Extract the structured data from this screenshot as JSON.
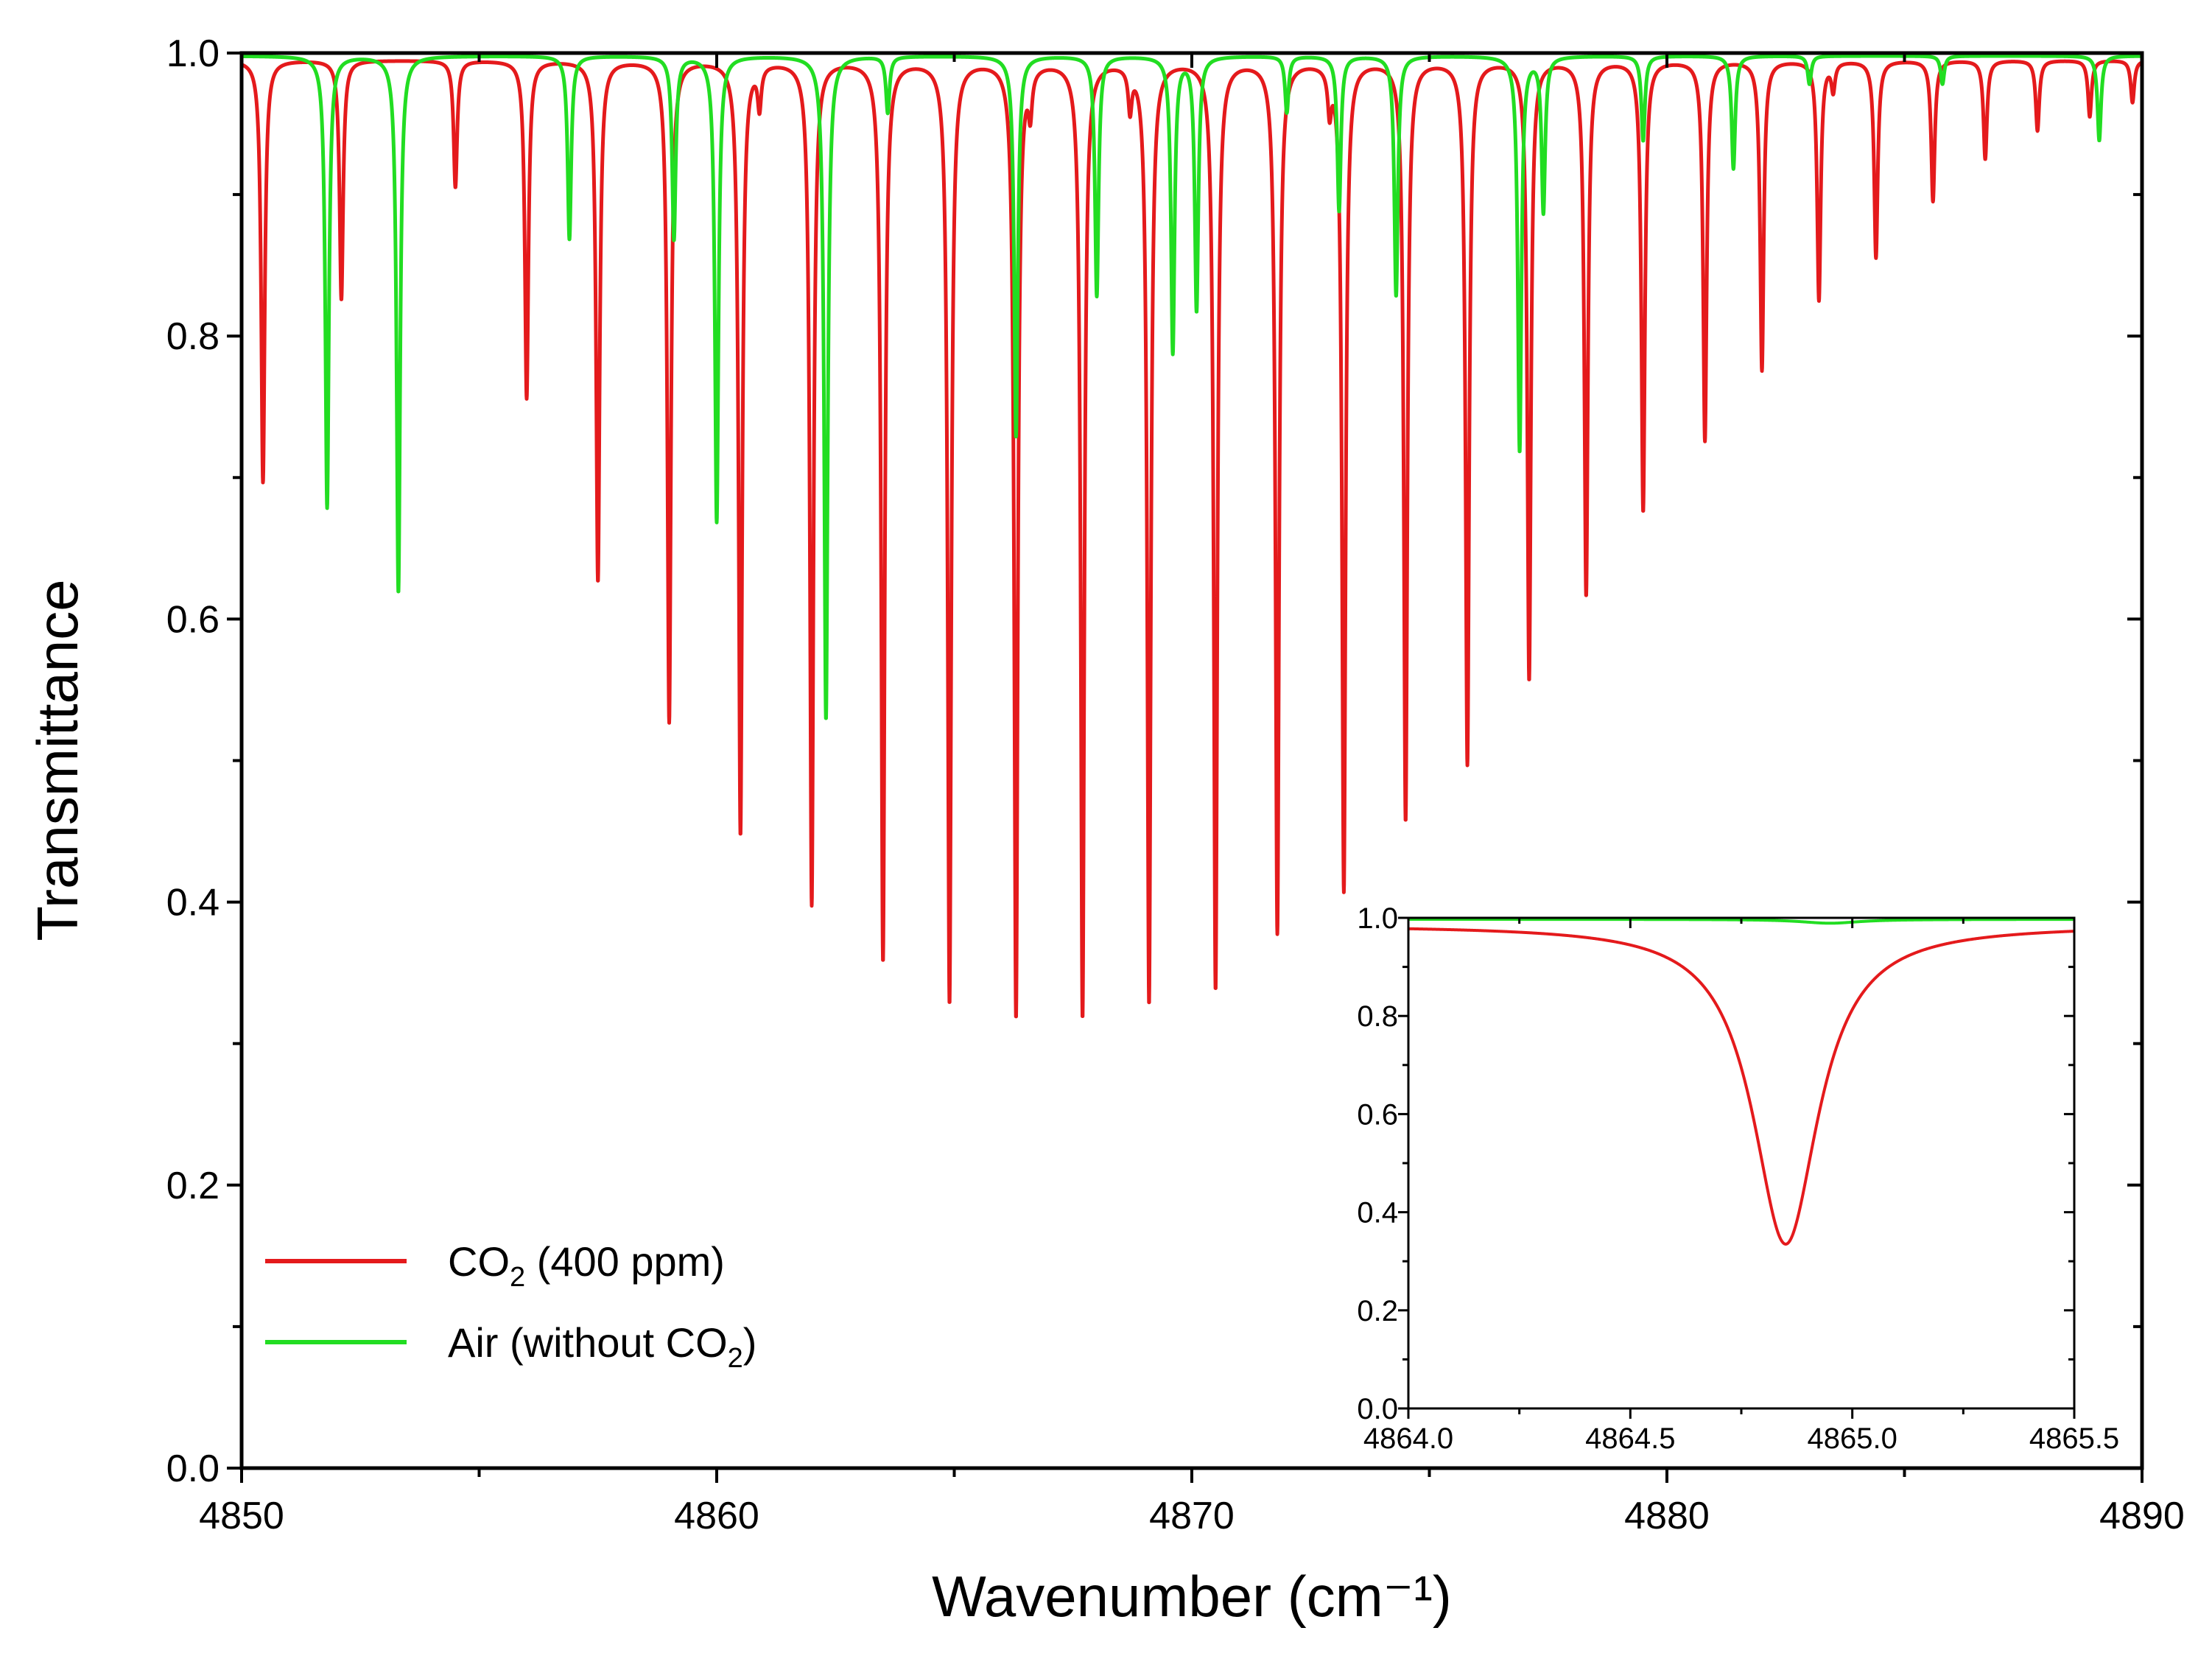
{
  "chart_data": [
    {
      "type": "line",
      "title": "",
      "xlabel": "Wavenumber (cm⁻¹)",
      "ylabel": "Transmittance",
      "xlim": [
        4850,
        4890
      ],
      "ylim": [
        0,
        1.0
      ],
      "xticks": [
        4850,
        4860,
        4870,
        4880,
        4890
      ],
      "xtick_labels": [
        "4850",
        "4860",
        "4870",
        "4880",
        "4890"
      ],
      "yticks": [
        0.0,
        0.2,
        0.4,
        0.6,
        0.8,
        1.0
      ],
      "ytick_labels": [
        "0.0",
        "0.2",
        "0.4",
        "0.6",
        "0.8",
        "1.0"
      ],
      "legend_position": "bottom-left",
      "series": [
        {
          "name": "CO2 (400 ppm)",
          "legend_main": "CO",
          "legend_sub": "2",
          "legend_suffix": " (400 ppm)",
          "color": "#e41a1c",
          "lines": [
            {
              "x": 4850.45,
              "depth": 0.3
            },
            {
              "x": 4852.1,
              "depth": 0.17
            },
            {
              "x": 4854.5,
              "depth": 0.09
            },
            {
              "x": 4856.0,
              "depth": 0.24
            },
            {
              "x": 4857.5,
              "depth": 0.37
            },
            {
              "x": 4859.0,
              "depth": 0.47
            },
            {
              "x": 4860.5,
              "depth": 0.55
            },
            {
              "x": 4862.0,
              "depth": 0.6
            },
            {
              "x": 4863.5,
              "depth": 0.64
            },
            {
              "x": 4864.9,
              "depth": 0.67
            },
            {
              "x": 4866.3,
              "depth": 0.68
            },
            {
              "x": 4867.7,
              "depth": 0.68
            },
            {
              "x": 4869.1,
              "depth": 0.67
            },
            {
              "x": 4870.5,
              "depth": 0.66
            },
            {
              "x": 4871.8,
              "depth": 0.62
            },
            {
              "x": 4873.2,
              "depth": 0.59
            },
            {
              "x": 4874.5,
              "depth": 0.54
            },
            {
              "x": 4875.8,
              "depth": 0.5
            },
            {
              "x": 4877.1,
              "depth": 0.44
            },
            {
              "x": 4878.3,
              "depth": 0.38
            },
            {
              "x": 4879.5,
              "depth": 0.32
            },
            {
              "x": 4880.8,
              "depth": 0.27
            },
            {
              "x": 4882.0,
              "depth": 0.22
            },
            {
              "x": 4883.2,
              "depth": 0.17
            },
            {
              "x": 4884.4,
              "depth": 0.14
            },
            {
              "x": 4885.6,
              "depth": 0.1
            },
            {
              "x": 4886.7,
              "depth": 0.07
            },
            {
              "x": 4887.8,
              "depth": 0.05
            },
            {
              "x": 4888.9,
              "depth": 0.04
            },
            {
              "x": 4889.8,
              "depth": 0.03
            },
            {
              "x": 4860.9,
              "depth": 0.03
            },
            {
              "x": 4866.6,
              "depth": 0.03
            },
            {
              "x": 4868.7,
              "depth": 0.03
            },
            {
              "x": 4872.9,
              "depth": 0.03
            },
            {
              "x": 4883.5,
              "depth": 0.02
            }
          ]
        },
        {
          "name": "Air (without CO2)",
          "legend_main": "Air (without CO",
          "legend_sub": "2",
          "legend_suffix": ")",
          "color": "#22dd22",
          "lines": [
            {
              "x": 4851.8,
              "depth": 0.32
            },
            {
              "x": 4853.3,
              "depth": 0.38
            },
            {
              "x": 4856.9,
              "depth": 0.13
            },
            {
              "x": 4859.1,
              "depth": 0.13
            },
            {
              "x": 4860.0,
              "depth": 0.33
            },
            {
              "x": 4862.3,
              "depth": 0.47
            },
            {
              "x": 4863.6,
              "depth": 0.04
            },
            {
              "x": 4866.3,
              "depth": 0.27
            },
            {
              "x": 4868.0,
              "depth": 0.17
            },
            {
              "x": 4869.6,
              "depth": 0.21
            },
            {
              "x": 4870.1,
              "depth": 0.18
            },
            {
              "x": 4872.0,
              "depth": 0.04
            },
            {
              "x": 4873.1,
              "depth": 0.11
            },
            {
              "x": 4874.3,
              "depth": 0.17
            },
            {
              "x": 4876.9,
              "depth": 0.28
            },
            {
              "x": 4877.4,
              "depth": 0.11
            },
            {
              "x": 4879.5,
              "depth": 0.06
            },
            {
              "x": 4881.4,
              "depth": 0.08
            },
            {
              "x": 4889.1,
              "depth": 0.06
            },
            {
              "x": 4885.8,
              "depth": 0.02
            },
            {
              "x": 4883.0,
              "depth": 0.02
            }
          ]
        }
      ]
    },
    {
      "type": "line",
      "title": "",
      "position": "inset lower-right",
      "xlim": [
        4864.0,
        4865.5
      ],
      "ylim": [
        0,
        1.0
      ],
      "xticks": [
        4864.0,
        4864.5,
        4865.0,
        4865.5
      ],
      "xtick_labels": [
        "4864.0",
        "4864.5",
        "4865.0",
        "4865.5"
      ],
      "yticks": [
        0.0,
        0.2,
        0.4,
        0.6,
        0.8,
        1.0
      ],
      "ytick_labels": [
        "0.0",
        "0.2",
        "0.4",
        "0.6",
        "0.8",
        "1.0"
      ],
      "series": [
        {
          "name": "CO2 (400 ppm)",
          "color": "#e41a1c",
          "lines": [
            {
              "x": 4864.85,
              "depth": 0.66
            }
          ],
          "halfwidth": 0.09,
          "baseline": 0.985
        },
        {
          "name": "Air (without CO2)",
          "color": "#22dd22",
          "lines": [
            {
              "x": 4864.95,
              "depth": 0.008
            }
          ],
          "halfwidth": 0.08,
          "baseline": 0.997
        }
      ]
    }
  ]
}
